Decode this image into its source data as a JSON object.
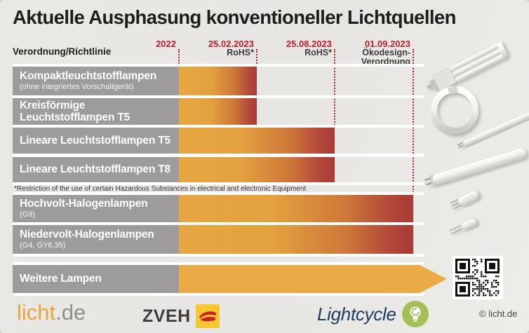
{
  "chart_data": {
    "type": "bar",
    "variant": "phase-out-timeline",
    "title": "Aktuelle Ausphasung konventioneller Lichtquellen",
    "axis_label": "Verordnung/Richtlinie",
    "ticks": [
      {
        "date": "2022",
        "law_lines": []
      },
      {
        "date": "25.02.2023",
        "law_lines": [
          "RoHS*"
        ]
      },
      {
        "date": "25.08.2023",
        "law_lines": [
          "RoHS*"
        ]
      },
      {
        "date": "01.09.2023",
        "law_lines": [
          "Ökodesign-",
          "Verordnung"
        ]
      }
    ],
    "rows": [
      {
        "label_lines": [
          "Kompaktleuchtstofflampen"
        ],
        "sublabel": "(ohne integriertes Vorschaltgerät)",
        "ends_at": "25.02.2023",
        "bar": "gradient"
      },
      {
        "label_lines": [
          "Kreisförmige",
          "Leuchtstofflampen T5"
        ],
        "sublabel": "",
        "ends_at": "25.02.2023",
        "bar": "gradient"
      },
      {
        "label_lines": [
          "Lineare Leuchtstofflampen T5"
        ],
        "sublabel": "",
        "ends_at": "25.08.2023",
        "bar": "gradient"
      },
      {
        "label_lines": [
          "Lineare Leuchtstofflampen T8"
        ],
        "sublabel": "",
        "ends_at": "25.08.2023",
        "bar": "gradient"
      },
      {
        "label_lines": [
          "Hochvolt-Halogenlampen"
        ],
        "sublabel": "(G9)",
        "ends_at": "01.09.2023",
        "bar": "gradient"
      },
      {
        "label_lines": [
          "Niedervolt-Halogenlampen"
        ],
        "sublabel": "(G4, GY6,35)",
        "ends_at": "01.09.2023",
        "bar": "gradient"
      },
      {
        "label_lines": [
          "Weitere Lampen"
        ],
        "sublabel": "",
        "ends_at": "ongoing",
        "bar": "arrow"
      }
    ],
    "footnote": "*Restriction of the use of certain Hazardous Substances in electrical and electronic Equipment"
  },
  "footer": {
    "licht_de_part1": "licht",
    "licht_de_part2": ".de",
    "zveh_label": "ZVEH",
    "lightcycle_label": "Lightcycle",
    "copyright": "© licht.de"
  },
  "colors": {
    "background": "#e7e6e3",
    "label_gray": "#9d9c9a",
    "bar_orange": "#e6a742",
    "bar_red": "#ab3a35",
    "arrow_orange": "#eaaa45",
    "date_red": "#bb1f27",
    "zveh_yellow": "#f7c631",
    "zveh_red": "#cf2027",
    "lightcycle_green": "#a3bf57",
    "lightcycle_navy": "#1e3b63",
    "licht_orange": "#e9a43e"
  }
}
